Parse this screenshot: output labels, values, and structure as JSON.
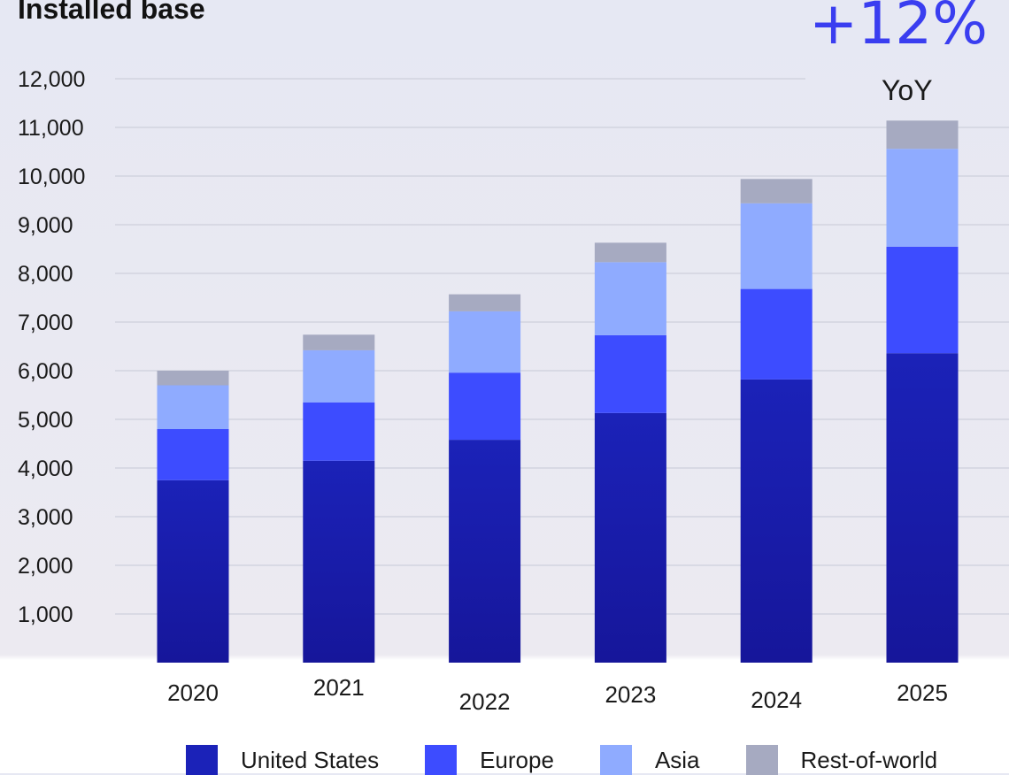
{
  "chart_data": {
    "type": "bar",
    "stacked": true,
    "title": "Installed base",
    "xlabel": "",
    "ylabel": "",
    "categories": [
      "2020",
      "2021",
      "2022",
      "2023",
      "2024",
      "2025"
    ],
    "series": [
      {
        "name": "United States",
        "color": "#1b22b8",
        "values": [
          3750,
          4150,
          4580,
          5130,
          5820,
          6360
        ]
      },
      {
        "name": "Europe",
        "color": "#3d4cff",
        "values": [
          1050,
          1200,
          1380,
          1600,
          1860,
          2190
        ]
      },
      {
        "name": "Asia",
        "color": "#8fabff",
        "values": [
          900,
          1070,
          1260,
          1500,
          1760,
          2010
        ]
      },
      {
        "name": "Rest-of-world",
        "color": "#a6aac1",
        "values": [
          300,
          320,
          350,
          400,
          500,
          580
        ]
      }
    ],
    "yticks": [
      1000,
      2000,
      3000,
      4000,
      5000,
      6000,
      7000,
      8000,
      9000,
      10000,
      11000,
      12000
    ],
    "ytick_labels": [
      "1,000",
      "2,000",
      "3,000",
      "4,000",
      "5,000",
      "6,000",
      "7,000",
      "8,000",
      "9,000",
      "10,000",
      "11,000",
      "12,000"
    ],
    "ylim": [
      0,
      12000
    ],
    "grid": true,
    "legend_position": "bottom",
    "annotation": {
      "value": "+12%",
      "caption": "YoY"
    }
  }
}
